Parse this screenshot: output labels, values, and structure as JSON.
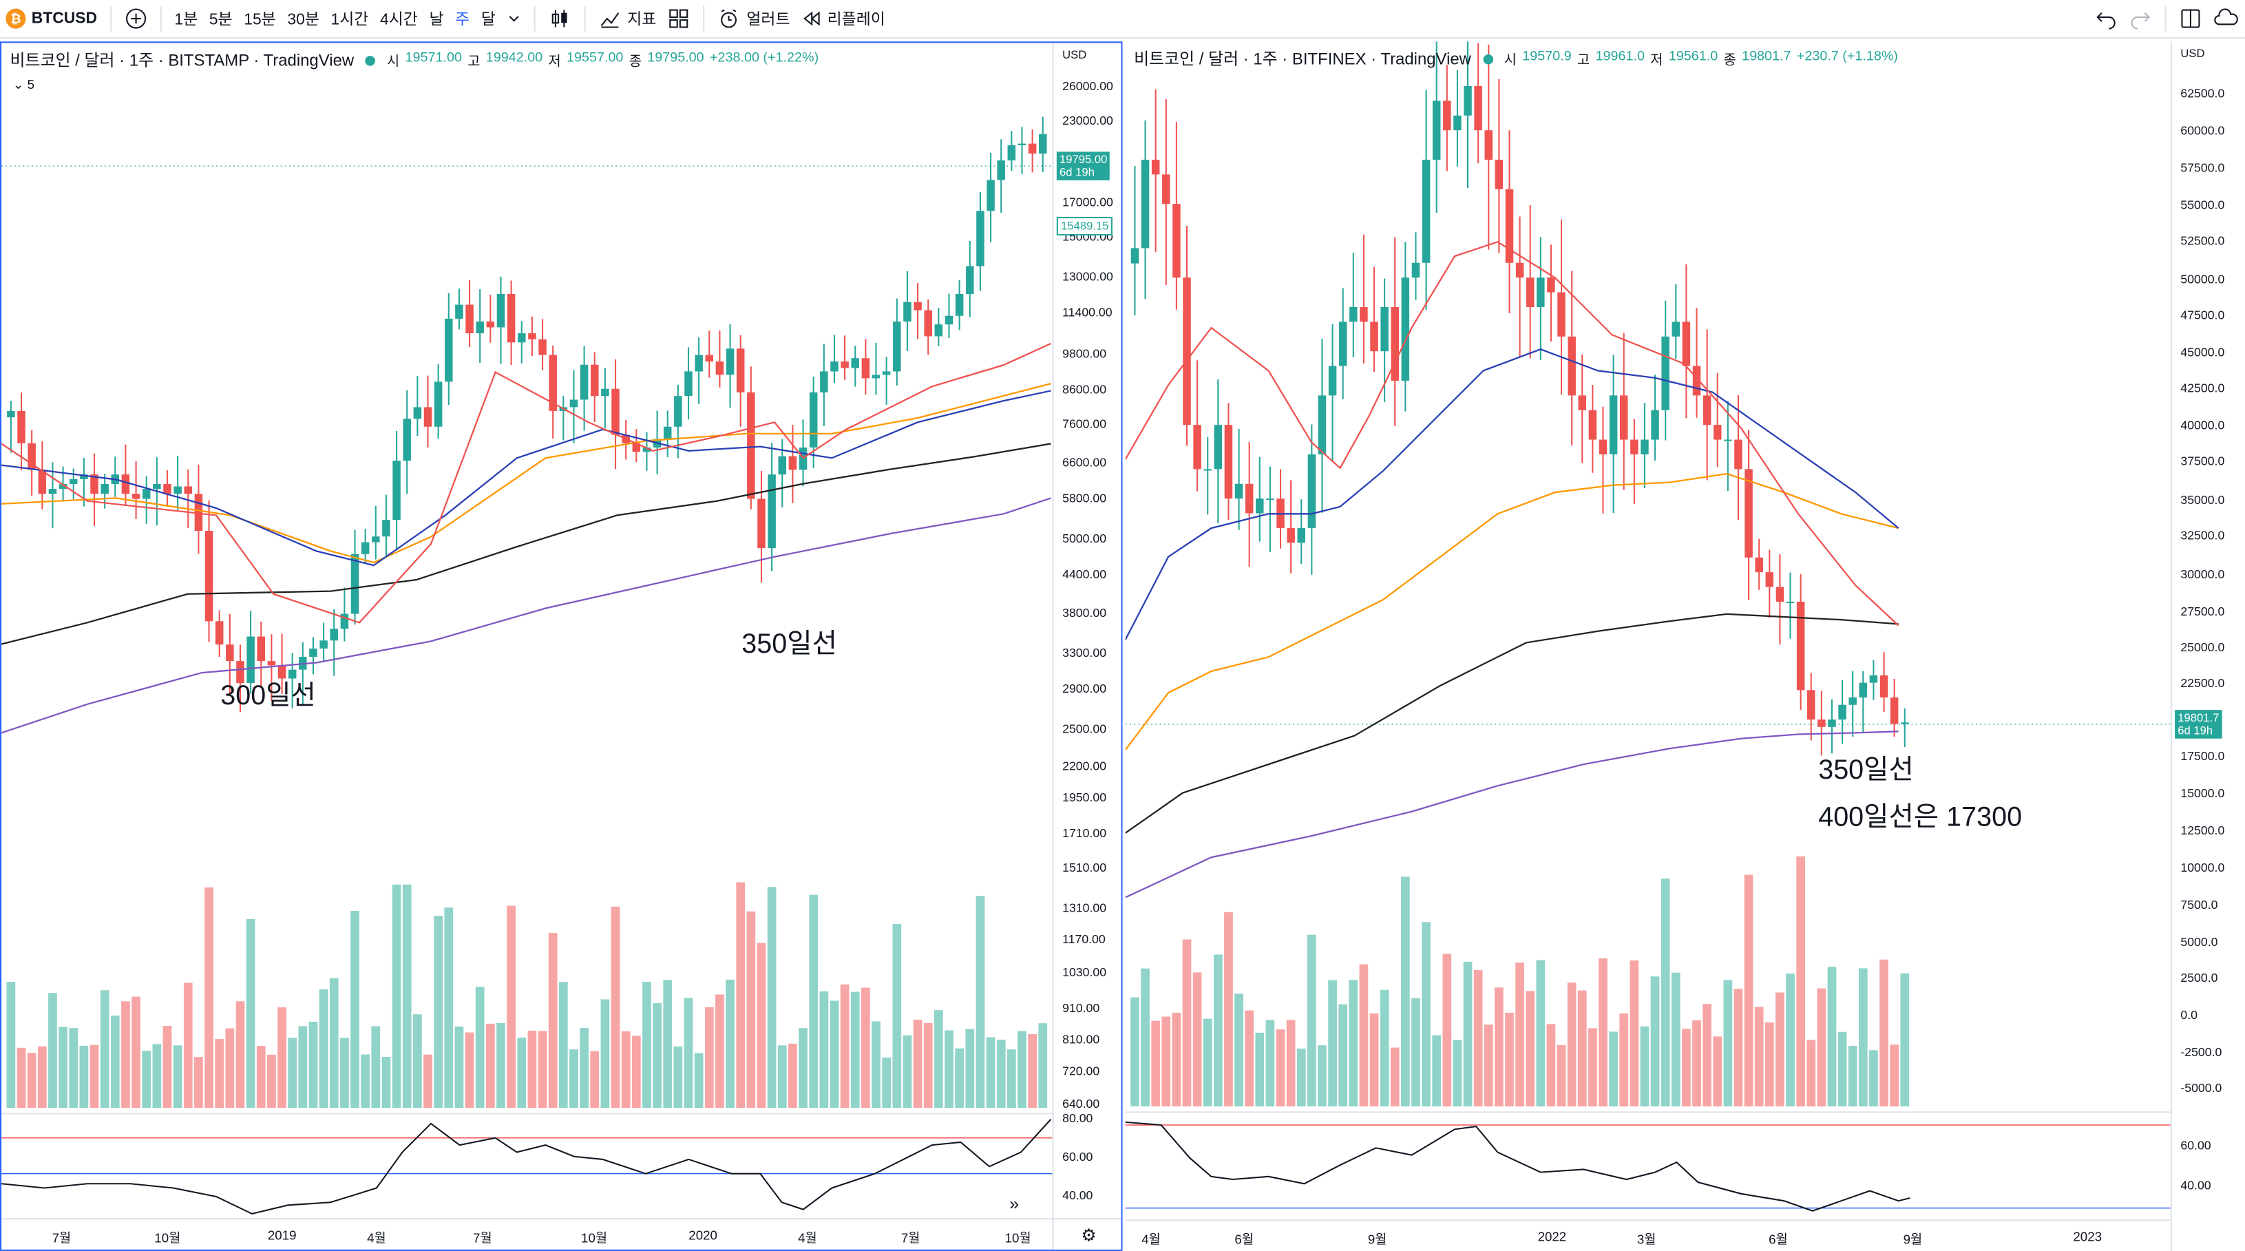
{
  "toolbar": {
    "symbol": "BTCUSD",
    "intervals": [
      "1분",
      "5분",
      "15분",
      "30분",
      "1시간",
      "4시간",
      "날",
      "주",
      "달"
    ],
    "active_interval": "주",
    "indicators_label": "지표",
    "alert_label": "얼러트",
    "replay_label": "리플레이",
    "icons": [
      "bitcoin-icon",
      "plus-circle-icon",
      "chevron-down-icon",
      "candles-icon",
      "indicators-icon",
      "templates-icon",
      "alarm-clock-icon",
      "replay-icon",
      "undo-icon",
      "redo-icon",
      "layout-icon",
      "cloud-icon"
    ],
    "accent": "#2962ff",
    "up_color": "#26a69a",
    "down_color": "#ef5350"
  },
  "left_chart": {
    "title": "비트코인 / 달러 · 1주 · BITSTAMP · TradingView",
    "ohlc": {
      "o_label": "시",
      "o": "19571.00",
      "h_label": "고",
      "h": "19942.00",
      "l_label": "저",
      "l": "19557.00",
      "c_label": "종",
      "c": "19795.00",
      "change": "+238.00 (+1.22%)"
    },
    "sublegend": "5",
    "currency": "USD",
    "price_ticks": [
      "26000.00",
      "23000.00",
      "17000.00",
      "15000.00",
      "13000.00",
      "11400.00",
      "9800.00",
      "8600.00",
      "7600.00",
      "6600.00",
      "5800.00",
      "5000.00",
      "4400.00",
      "3800.00",
      "3300.00",
      "2900.00",
      "2500.00",
      "2200.00",
      "1950.00",
      "1710.00",
      "1510.00",
      "1310.00",
      "1170.00",
      "1030.00",
      "910.00",
      "810.00",
      "720.00",
      "640.00"
    ],
    "price_label_last": "19795.00",
    "price_label_countdown": "6d 19h",
    "price_label_ma": "15489.15",
    "osc_ticks": [
      "80.00",
      "60.00",
      "40.00"
    ],
    "time_ticks": [
      "7월",
      "10월",
      "2019",
      "4월",
      "7월",
      "10월",
      "2020",
      "4월",
      "7월",
      "10월"
    ],
    "annotations": [
      "300일선",
      "350일선"
    ]
  },
  "right_chart": {
    "title": "비트코인 / 달러 · 1주 · BITFINEX · TradingView",
    "ohlc": {
      "o_label": "시",
      "o": "19570.9",
      "h_label": "고",
      "h": "19961.0",
      "l_label": "저",
      "l": "19561.0",
      "c_label": "종",
      "c": "19801.7",
      "change": "+230.7 (+1.18%)"
    },
    "currency": "USD",
    "price_ticks": [
      "62500.0",
      "60000.0",
      "57500.0",
      "55000.0",
      "52500.0",
      "50000.0",
      "47500.0",
      "45000.0",
      "42500.0",
      "40000.0",
      "37500.0",
      "35000.0",
      "32500.0",
      "30000.0",
      "27500.0",
      "25000.0",
      "22500.0",
      "17500.0",
      "15000.0",
      "12500.0",
      "10000.0",
      "7500.0",
      "5000.0",
      "2500.0",
      "0.0",
      "-2500.0",
      "-5000.0"
    ],
    "price_label_last": "19801.7",
    "price_label_countdown": "6d 19h",
    "osc_ticks": [
      "60.00",
      "40.00"
    ],
    "time_ticks": [
      "4월",
      "6월",
      "9월",
      "2022",
      "3월",
      "6월",
      "9월",
      "2023"
    ],
    "annotations": [
      "350일선",
      "400일선은 17300"
    ]
  },
  "colors": {
    "ma_red": "#ef5350",
    "ma_blue": "#2a3fb5",
    "ma_orange": "#ff9800",
    "ma_black": "#222222",
    "ma_purple": "#7e57c2",
    "vol_up": "#8fd3c9",
    "vol_down": "#f7a5a4"
  }
}
